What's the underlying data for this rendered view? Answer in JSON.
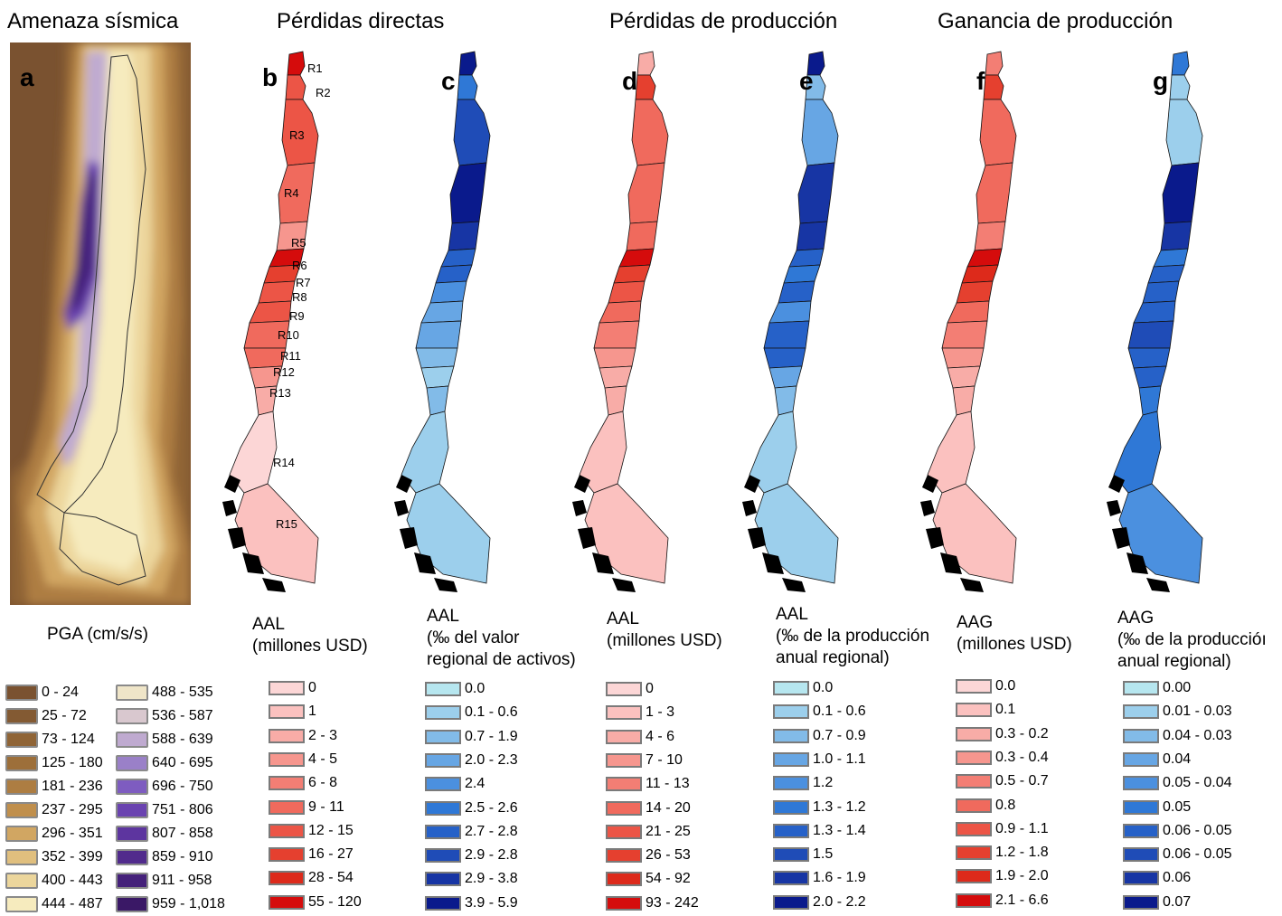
{
  "titles": {
    "a": "Amenaza sísmica",
    "b": "Pérdidas directas",
    "d": "Pérdidas de producción",
    "f": "Ganancia de producción"
  },
  "panels": [
    {
      "letter": "a"
    },
    {
      "letter": "b"
    },
    {
      "letter": "c"
    },
    {
      "letter": "d"
    },
    {
      "letter": "e"
    },
    {
      "letter": "f"
    },
    {
      "letter": "g"
    }
  ],
  "region_labels": [
    "R1",
    "R2",
    "R3",
    "R4",
    "R5",
    "R6",
    "R7",
    "R8",
    "R9",
    "R10",
    "R11",
    "R12",
    "R13",
    "R14",
    "R15"
  ],
  "pga_legend": {
    "title": "PGA (cm/s/s)",
    "items": [
      {
        "label": "0 - 24",
        "color": "#7a5230"
      },
      {
        "label": "25 - 72",
        "color": "#835a33"
      },
      {
        "label": "73 - 124",
        "color": "#8f6436"
      },
      {
        "label": "125 - 180",
        "color": "#9d6f3a"
      },
      {
        "label": "181 - 236",
        "color": "#ad7d42"
      },
      {
        "label": "237 - 295",
        "color": "#c08f4c"
      },
      {
        "label": "296 - 351",
        "color": "#d1a662"
      },
      {
        "label": "352 - 399",
        "color": "#e0bf7e"
      },
      {
        "label": "400 - 443",
        "color": "#ecd69c"
      },
      {
        "label": "444 - 487",
        "color": "#f6ebbe"
      },
      {
        "label": "488 - 535",
        "color": "#efe5c8"
      },
      {
        "label": "536 - 587",
        "color": "#d9c8cf"
      },
      {
        "label": "588 - 639",
        "color": "#bfaad0"
      },
      {
        "label": "640 - 695",
        "color": "#9a80c8"
      },
      {
        "label": "696 - 750",
        "color": "#7e5cc0"
      },
      {
        "label": "751 - 806",
        "color": "#6a43b0"
      },
      {
        "label": "807 - 858",
        "color": "#5d359f"
      },
      {
        "label": "859 - 910",
        "color": "#512b8c"
      },
      {
        "label": "911 - 958",
        "color": "#45217a"
      },
      {
        "label": "959 - 1,018",
        "color": "#3a1866"
      }
    ]
  },
  "legends": {
    "b": {
      "title": "AAL\n(millones USD)",
      "items": [
        {
          "label": "0",
          "color": "#fcd6d6"
        },
        {
          "label": "1",
          "color": "#fbc1bf"
        },
        {
          "label": "2 - 3",
          "color": "#f8aca7"
        },
        {
          "label": "4 - 5",
          "color": "#f6968e"
        },
        {
          "label": "6 - 8",
          "color": "#f37e74"
        },
        {
          "label": "9 - 11",
          "color": "#f06a5d"
        },
        {
          "label": "12 - 15",
          "color": "#ec5546"
        },
        {
          "label": "16 - 27",
          "color": "#e5402f"
        },
        {
          "label": "28 - 54",
          "color": "#dd2a1b"
        },
        {
          "label": "55 - 120",
          "color": "#d50c0c"
        }
      ]
    },
    "c": {
      "title": "AAL\n(‰ del valor\nregional de activos)",
      "items": [
        {
          "label": "0.0",
          "color": "#b6e6ef"
        },
        {
          "label": "0.1 - 0.6",
          "color": "#9ccfec"
        },
        {
          "label": "0.7 - 1.9",
          "color": "#82bbe8"
        },
        {
          "label": "2.0 - 2.3",
          "color": "#67a6e4"
        },
        {
          "label": "2.4",
          "color": "#4b90df"
        },
        {
          "label": "2.5 - 2.6",
          "color": "#2f78d6"
        },
        {
          "label": "2.7 - 2.8",
          "color": "#2661c8"
        },
        {
          "label": "2.9 - 2.8",
          "color": "#1f4cb7"
        },
        {
          "label": "2.9 - 3.8",
          "color": "#1735a4"
        },
        {
          "label": "3.9 - 5.9",
          "color": "#0a1a8c"
        }
      ]
    },
    "d": {
      "title": "AAL\n(millones USD)",
      "items": [
        {
          "label": "0",
          "color": "#fcd6d6"
        },
        {
          "label": "1 - 3",
          "color": "#fbc1bf"
        },
        {
          "label": "4 - 6",
          "color": "#f8aca7"
        },
        {
          "label": "7 - 10",
          "color": "#f6968e"
        },
        {
          "label": "11 - 13",
          "color": "#f37e74"
        },
        {
          "label": "14 - 20",
          "color": "#f06a5d"
        },
        {
          "label": "21 - 25",
          "color": "#ec5546"
        },
        {
          "label": "26 - 53",
          "color": "#e5402f"
        },
        {
          "label": "54 - 92",
          "color": "#dd2a1b"
        },
        {
          "label": "93 - 242",
          "color": "#d50c0c"
        }
      ]
    },
    "e": {
      "title": "AAL\n(‰ de la producción\nanual regional)",
      "items": [
        {
          "label": "0.0",
          "color": "#b6e6ef"
        },
        {
          "label": "0.1 - 0.6",
          "color": "#9ccfec"
        },
        {
          "label": "0.7 - 0.9",
          "color": "#82bbe8"
        },
        {
          "label": "1.0 - 1.1",
          "color": "#67a6e4"
        },
        {
          "label": "1.2",
          "color": "#4b90df"
        },
        {
          "label": "1.3 - 1.2",
          "color": "#2f78d6"
        },
        {
          "label": "1.3 - 1.4",
          "color": "#2661c8"
        },
        {
          "label": "1.5",
          "color": "#1f4cb7"
        },
        {
          "label": "1.6 - 1.9",
          "color": "#1735a4"
        },
        {
          "label": "2.0 - 2.2",
          "color": "#0a1a8c"
        }
      ]
    },
    "f": {
      "title": "AAG\n(millones USD)",
      "items": [
        {
          "label": "0.0",
          "color": "#fcd6d6"
        },
        {
          "label": "0.1",
          "color": "#fbc1bf"
        },
        {
          "label": "0.3 - 0.2",
          "color": "#f8aca7"
        },
        {
          "label": "0.3 - 0.4",
          "color": "#f6968e"
        },
        {
          "label": "0.5 - 0.7",
          "color": "#f37e74"
        },
        {
          "label": "0.8",
          "color": "#f06a5d"
        },
        {
          "label": "0.9 - 1.1",
          "color": "#ec5546"
        },
        {
          "label": "1.2 - 1.8",
          "color": "#e5402f"
        },
        {
          "label": "1.9 - 2.0",
          "color": "#dd2a1b"
        },
        {
          "label": "2.1 - 6.6",
          "color": "#d50c0c"
        }
      ]
    },
    "g": {
      "title": "AAG\n(‰ de la produccióı\nanual regional)",
      "items": [
        {
          "label": "0.00",
          "color": "#b6e6ef"
        },
        {
          "label": "0.01 - 0.03",
          "color": "#9ccfec"
        },
        {
          "label": "0.04 - 0.03",
          "color": "#82bbe8"
        },
        {
          "label": "0.04",
          "color": "#67a6e4"
        },
        {
          "label": "0.05 - 0.04",
          "color": "#4b90df"
        },
        {
          "label": "0.05",
          "color": "#2f78d6"
        },
        {
          "label": "0.06 - 0.05",
          "color": "#2661c8"
        },
        {
          "label": "0.06 - 0.05",
          "color": "#1f4cb7"
        },
        {
          "label": "0.06",
          "color": "#1735a4"
        },
        {
          "label": "0.07",
          "color": "#0a1a8c"
        }
      ]
    }
  },
  "map_region_colors": {
    "b": [
      9,
      6,
      6,
      5,
      3,
      9,
      7,
      6,
      6,
      5,
      5,
      3,
      2,
      0,
      1
    ],
    "c": [
      9,
      5,
      7,
      9,
      8,
      6,
      6,
      4,
      3,
      3,
      2,
      1,
      2,
      1,
      1
    ],
    "d": [
      2,
      7,
      5,
      5,
      5,
      9,
      7,
      6,
      5,
      4,
      3,
      2,
      2,
      1,
      1
    ],
    "e": [
      9,
      2,
      3,
      8,
      8,
      6,
      5,
      6,
      4,
      6,
      6,
      3,
      2,
      1,
      1
    ],
    "f": [
      4,
      7,
      5,
      5,
      4,
      9,
      8,
      7,
      5,
      4,
      3,
      2,
      2,
      1,
      1
    ],
    "g": [
      5,
      1,
      1,
      9,
      8,
      5,
      6,
      6,
      6,
      7,
      6,
      6,
      5,
      5,
      4
    ]
  }
}
